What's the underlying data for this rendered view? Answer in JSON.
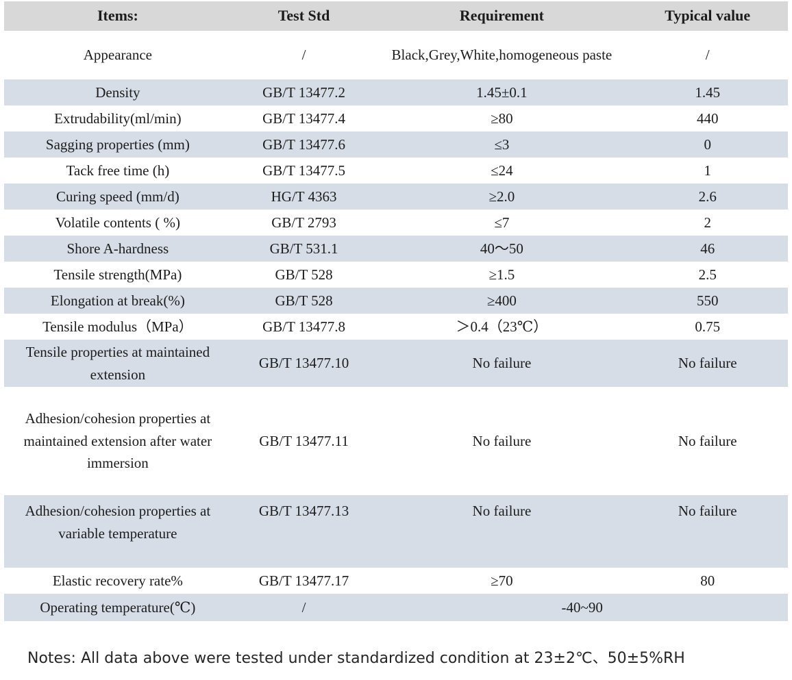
{
  "colors": {
    "header_bg": "#d8d8d8",
    "stripe_bg": "#d6dde7",
    "text": "#1c1c1c",
    "page_bg": "#ffffff"
  },
  "table": {
    "headers": [
      "Items:",
      "Test Std",
      "Requirement",
      "Typical value"
    ],
    "rows": [
      {
        "item": "Appearance",
        "test_std": "/",
        "requirement": "Black,Grey,White,homogeneous paste",
        "typical": "/"
      },
      {
        "item": "Density",
        "test_std": "GB/T 13477.2",
        "requirement": "1.45±0.1",
        "typical": "1.45"
      },
      {
        "item": "Extrudability(ml/min)",
        "test_std": "GB/T 13477.4",
        "requirement": "≥80",
        "typical": "440"
      },
      {
        "item": "Sagging properties (mm)",
        "test_std": "GB/T 13477.6",
        "requirement": "≤3",
        "typical": "0"
      },
      {
        "item": "Tack free time (h)",
        "test_std": "GB/T 13477.5",
        "requirement": "≤24",
        "typical": "1"
      },
      {
        "item": "Curing speed (mm/d)",
        "test_std": "HG/T 4363",
        "requirement": "≥2.0",
        "typical": "2.6"
      },
      {
        "item": "Volatile contents ( %)",
        "test_std": "GB/T 2793",
        "requirement": "≤7",
        "typical": "2"
      },
      {
        "item": "Shore A-hardness",
        "test_std": "GB/T 531.1",
        "requirement": "40～50",
        "typical": "46"
      },
      {
        "item": "Tensile strength(MPa)",
        "test_std": "GB/T 528",
        "requirement": "≥1.5",
        "typical": "2.5"
      },
      {
        "item": "Elongation at break(%)",
        "test_std": "GB/T 528",
        "requirement": "≥400",
        "typical": "550"
      },
      {
        "item": "Tensile modulus（MPa）",
        "test_std": "GB/T 13477.8",
        "requirement": "＞0.4（23℃）",
        "typical": "0.75"
      },
      {
        "item": "Tensile properties at maintained extension",
        "test_std": "GB/T 13477.10",
        "requirement": "No failure",
        "typical": "No failure"
      },
      {
        "item": "Adhesion/cohesion properties at maintained extension after water immersion",
        "test_std": "GB/T 13477.11",
        "requirement": "No failure",
        "typical": "No failure"
      },
      {
        "item": "Adhesion/cohesion properties at variable temperature",
        "test_std": "GB/T 13477.13",
        "requirement": "No failure",
        "typical": "No failure"
      },
      {
        "item": "Elastic recovery rate%",
        "test_std": "GB/T 13477.17",
        "requirement": "≥70",
        "typical": "80"
      },
      {
        "item": "Operating temperature(℃)",
        "test_std": "/",
        "requirement": "-40~90"
      }
    ]
  },
  "note": "Notes: All data above were tested under standardized condition at 23±2℃、50±5%RH"
}
